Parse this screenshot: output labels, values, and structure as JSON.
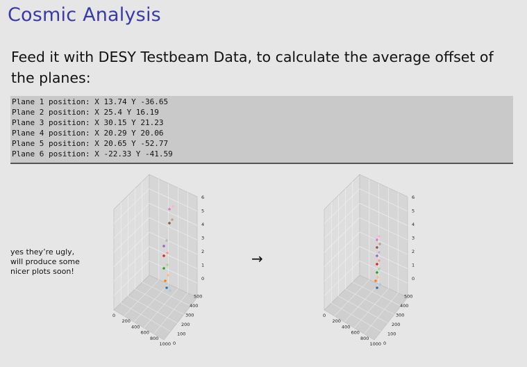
{
  "slide": {
    "title": "Cosmic Analysis",
    "intro": "Feed it with DESY Testbeam Data, to calculate the average offset of the planes:"
  },
  "code_lines": [
    "Plane 1 position: X 13.74 Y -36.65",
    "Plane 2 position: X 25.4 Y 16.19",
    "Plane 3 position: X 30.15 Y 21.23",
    "Plane 4 position: X 20.29 Y 20.06",
    "Plane 5 position: X 20.65 Y -52.77",
    "Plane 6 position: X -22.33 Y -41.59"
  ],
  "note": "yes they’re ugly, will produce some nicer plots soon!",
  "arrow": "→",
  "plots": {
    "z_ticks": [
      "0",
      "1",
      "2",
      "3",
      "4",
      "5",
      "6"
    ],
    "y_ticks": [
      "0",
      "100",
      "200",
      "300",
      "400",
      "500"
    ],
    "x_ticks": [
      "0",
      "200",
      "400",
      "600",
      "800",
      "1000"
    ],
    "plane_colors": [
      "#1f77b4",
      "#ff7f0e",
      "#2ca02c",
      "#d62728",
      "#9467bd",
      "#8c564b",
      "#e377c2"
    ],
    "point_colors": [
      "#1f77b4",
      "#aec7e8",
      "#ff7f0e",
      "#ffbb78",
      "#2ca02c",
      "#98df8a",
      "#d62728",
      "#ff9896",
      "#9467bd",
      "#c5b0d5",
      "#8c564b",
      "#c49c94",
      "#e377c2",
      "#f7b6d2"
    ]
  }
}
